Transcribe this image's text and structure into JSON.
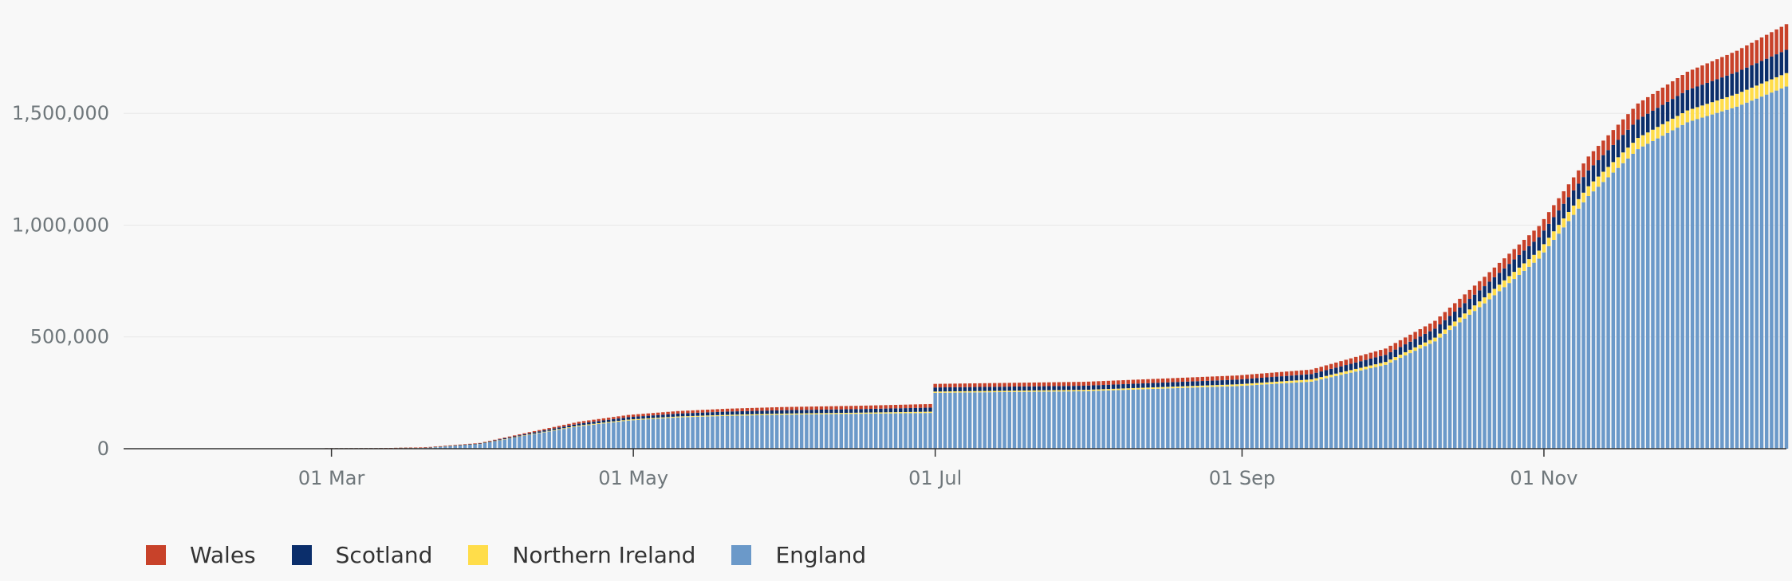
{
  "colors": {
    "England": "#6b99c9",
    "Northern Ireland": "#ffdd4a",
    "Scotland": "#0b2e6b",
    "Wales": "#c8422a",
    "grid": "#e8e8e8",
    "axis": "#333333",
    "text": "#6f777b"
  },
  "chart_data": {
    "type": "bar",
    "stacked": true,
    "title": "",
    "xlabel": "",
    "ylabel": "",
    "x_start": "2020-01-31",
    "x_end": "2020-12-20",
    "xlim": [
      "2020-01-19",
      "2020-12-20"
    ],
    "ylim": [
      0,
      1900000
    ],
    "y_ticks": [
      0,
      500000,
      1000000,
      1500000
    ],
    "y_tick_labels": [
      "0",
      "500,000",
      "1,000,000",
      "1,500,000"
    ],
    "x_ticks": [
      "2020-03-01",
      "2020-05-01",
      "2020-07-01",
      "2020-09-01",
      "2020-11-01"
    ],
    "x_tick_labels": [
      "01 Mar",
      "01 May",
      "01 Jul",
      "01 Sep",
      "01 Nov"
    ],
    "grid": true,
    "legend_position": "bottom-left",
    "legend": [
      "Wales",
      "Scotland",
      "Northern Ireland",
      "England"
    ],
    "stack_order": [
      "England",
      "Northern Ireland",
      "Scotland",
      "Wales"
    ],
    "series": [
      {
        "name": "England",
        "points": [
          [
            "2020-01-31",
            0
          ],
          [
            "2020-02-28",
            0
          ],
          [
            "2020-03-10",
            300
          ],
          [
            "2020-03-20",
            3500
          ],
          [
            "2020-03-31",
            21000
          ],
          [
            "2020-04-10",
            62000
          ],
          [
            "2020-04-20",
            100000
          ],
          [
            "2020-04-30",
            126000
          ],
          [
            "2020-05-10",
            140000
          ],
          [
            "2020-05-20",
            147000
          ],
          [
            "2020-05-31",
            152000
          ],
          [
            "2020-06-15",
            156000
          ],
          [
            "2020-06-30",
            160000
          ],
          [
            "2020-07-01",
            250000
          ],
          [
            "2020-07-31",
            257000
          ],
          [
            "2020-08-31",
            280000
          ],
          [
            "2020-09-15",
            300000
          ],
          [
            "2020-09-30",
            375000
          ],
          [
            "2020-10-10",
            480000
          ],
          [
            "2020-10-20",
            650000
          ],
          [
            "2020-10-31",
            850000
          ],
          [
            "2020-11-10",
            1130000
          ],
          [
            "2020-11-20",
            1340000
          ],
          [
            "2020-11-30",
            1460000
          ],
          [
            "2020-12-10",
            1530000
          ],
          [
            "2020-12-20",
            1620000
          ]
        ]
      },
      {
        "name": "Northern Ireland",
        "points": [
          [
            "2020-01-31",
            0
          ],
          [
            "2020-02-28",
            0
          ],
          [
            "2020-03-10",
            20
          ],
          [
            "2020-03-20",
            100
          ],
          [
            "2020-03-31",
            600
          ],
          [
            "2020-04-10",
            2000
          ],
          [
            "2020-04-20",
            3600
          ],
          [
            "2020-04-30",
            4000
          ],
          [
            "2020-05-10",
            4300
          ],
          [
            "2020-05-20",
            4600
          ],
          [
            "2020-05-31",
            4900
          ],
          [
            "2020-06-15",
            5000
          ],
          [
            "2020-06-30",
            5600
          ],
          [
            "2020-07-01",
            5700
          ],
          [
            "2020-07-31",
            6000
          ],
          [
            "2020-08-31",
            8000
          ],
          [
            "2020-09-15",
            10000
          ],
          [
            "2020-09-30",
            13000
          ],
          [
            "2020-10-10",
            17000
          ],
          [
            "2020-10-20",
            27000
          ],
          [
            "2020-10-31",
            36000
          ],
          [
            "2020-11-10",
            44000
          ],
          [
            "2020-11-20",
            50000
          ],
          [
            "2020-11-30",
            53000
          ],
          [
            "2020-12-10",
            57000
          ],
          [
            "2020-12-20",
            60000
          ]
        ]
      },
      {
        "name": "Scotland",
        "points": [
          [
            "2020-01-31",
            0
          ],
          [
            "2020-02-28",
            0
          ],
          [
            "2020-03-10",
            30
          ],
          [
            "2020-03-20",
            300
          ],
          [
            "2020-03-31",
            1900
          ],
          [
            "2020-04-10",
            5000
          ],
          [
            "2020-04-20",
            8500
          ],
          [
            "2020-04-30",
            11000
          ],
          [
            "2020-05-10",
            13000
          ],
          [
            "2020-05-20",
            14500
          ],
          [
            "2020-05-31",
            15300
          ],
          [
            "2020-06-15",
            15800
          ],
          [
            "2020-06-30",
            18200
          ],
          [
            "2020-07-01",
            18200
          ],
          [
            "2020-07-31",
            18600
          ],
          [
            "2020-08-31",
            21000
          ],
          [
            "2020-09-15",
            24000
          ],
          [
            "2020-09-30",
            32000
          ],
          [
            "2020-10-10",
            40000
          ],
          [
            "2020-10-20",
            50000
          ],
          [
            "2020-10-31",
            60000
          ],
          [
            "2020-11-10",
            71000
          ],
          [
            "2020-11-20",
            82000
          ],
          [
            "2020-11-30",
            91000
          ],
          [
            "2020-12-10",
            98000
          ],
          [
            "2020-12-20",
            104000
          ]
        ]
      },
      {
        "name": "Wales",
        "points": [
          [
            "2020-01-31",
            0
          ],
          [
            "2020-02-28",
            0
          ],
          [
            "2020-03-10",
            20
          ],
          [
            "2020-03-20",
            200
          ],
          [
            "2020-03-31",
            2000
          ],
          [
            "2020-04-10",
            5000
          ],
          [
            "2020-04-20",
            8500
          ],
          [
            "2020-04-30",
            10000
          ],
          [
            "2020-05-10",
            11000
          ],
          [
            "2020-05-20",
            12800
          ],
          [
            "2020-05-31",
            14000
          ],
          [
            "2020-06-15",
            15000
          ],
          [
            "2020-06-30",
            16000
          ],
          [
            "2020-07-01",
            16000
          ],
          [
            "2020-07-31",
            17500
          ],
          [
            "2020-08-31",
            18500
          ],
          [
            "2020-09-15",
            20000
          ],
          [
            "2020-09-30",
            28000
          ],
          [
            "2020-10-10",
            35000
          ],
          [
            "2020-10-20",
            42000
          ],
          [
            "2020-10-31",
            50000
          ],
          [
            "2020-11-10",
            62000
          ],
          [
            "2020-11-20",
            72000
          ],
          [
            "2020-11-30",
            82000
          ],
          [
            "2020-12-10",
            95000
          ],
          [
            "2020-12-20",
            115000
          ]
        ]
      }
    ]
  }
}
